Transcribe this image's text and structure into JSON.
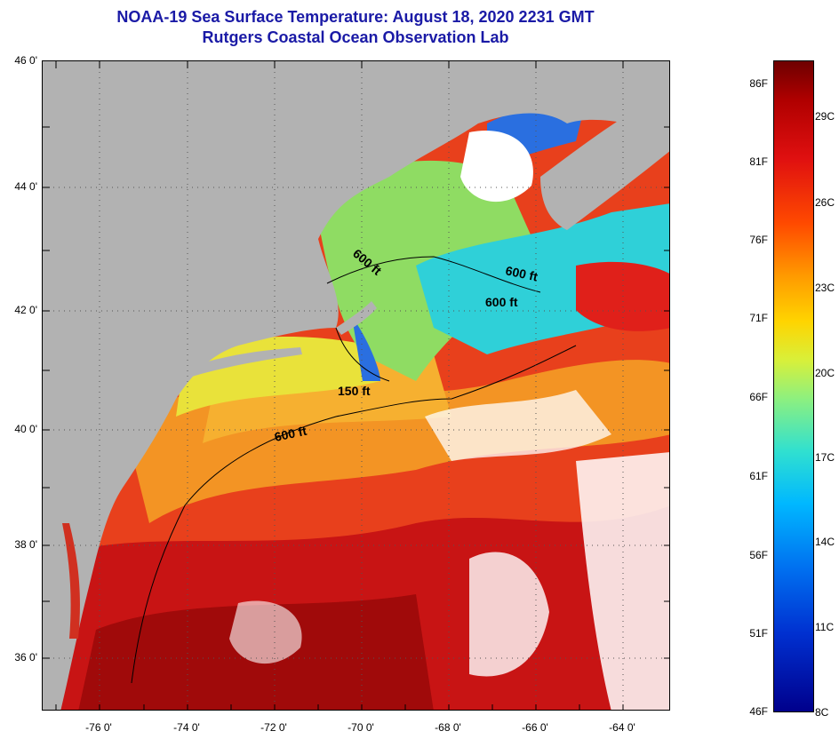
{
  "header": {
    "title": "NOAA-19 Sea Surface Temperature:  August 18, 2020 2231 GMT",
    "subtitle": "Rutgers Coastal Ocean Observation Lab"
  },
  "map": {
    "lat_labels": [
      "46 0'",
      "44 0'",
      "42 0'",
      "40 0'",
      "38 0'",
      "36 0'"
    ],
    "lon_labels": [
      "-76 0'",
      "-74 0'",
      "-72 0'",
      "-70 0'",
      "-68 0'",
      "-66 0'",
      "-64 0'"
    ],
    "contour_labels": [
      "600 ft",
      "600 ft",
      "600 ft",
      "150 ft",
      "600 ft"
    ],
    "colors": {
      "land": "#b2b2b2",
      "cloud": "#ffffff",
      "warm": "#e0201a",
      "hot": "#a00a0a",
      "orange": "#f39424",
      "yellow": "#e9e23a",
      "green": "#8fdc63",
      "cyan": "#2fd0d8",
      "blue": "#2a6fe0"
    }
  },
  "colorbar": {
    "fahrenheit_labels": [
      "86F",
      "81F",
      "76F",
      "71F",
      "66F",
      "61F",
      "56F",
      "51F",
      "46F"
    ],
    "celsius_labels": [
      "29C",
      "26C",
      "23C",
      "20C",
      "17C",
      "14C",
      "11C",
      "8C"
    ]
  }
}
